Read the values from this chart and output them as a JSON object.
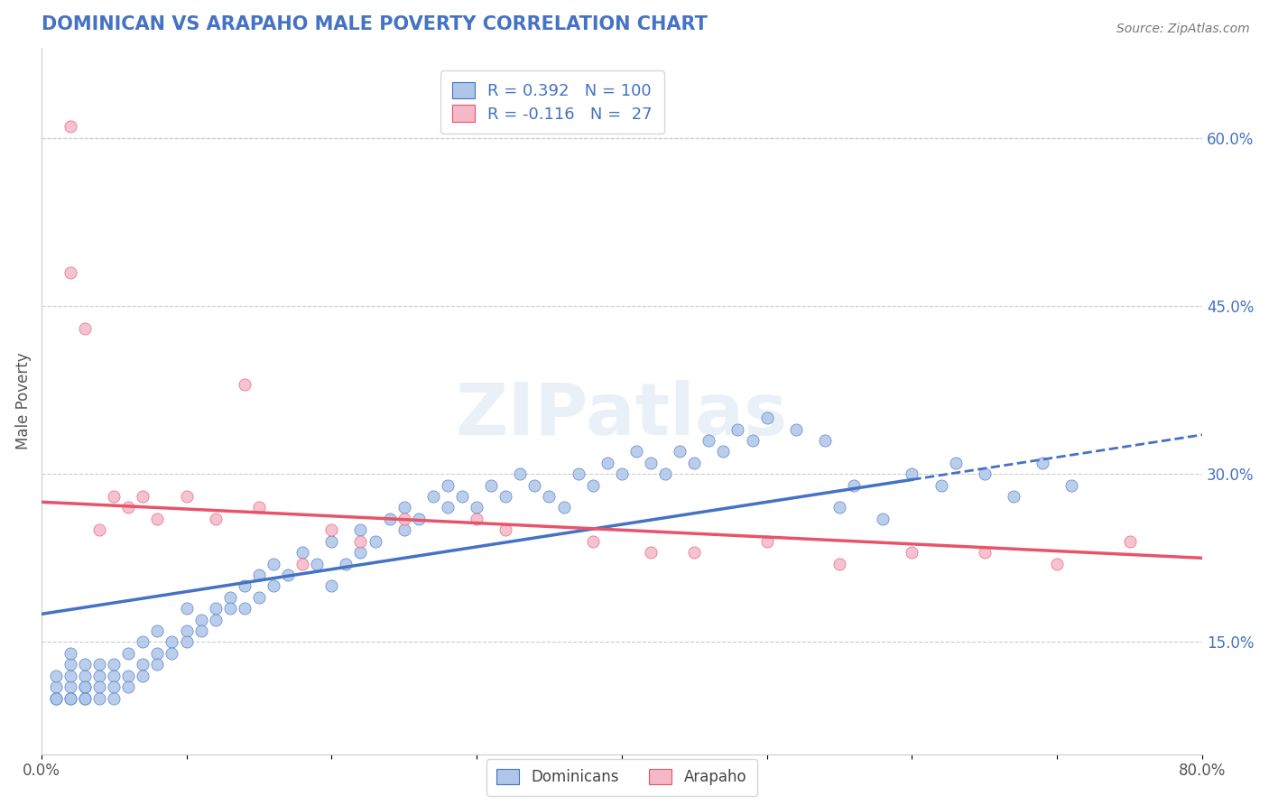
{
  "title": "DOMINICAN VS ARAPAHO MALE POVERTY CORRELATION CHART",
  "source": "Source: ZipAtlas.com",
  "ylabel": "Male Poverty",
  "xlim": [
    0.0,
    0.8
  ],
  "ylim": [
    0.05,
    0.68
  ],
  "xticks": [
    0.0,
    0.1,
    0.2,
    0.3,
    0.4,
    0.5,
    0.6,
    0.7,
    0.8
  ],
  "xticklabels": [
    "0.0%",
    "",
    "",
    "",
    "",
    "",
    "",
    "",
    "80.0%"
  ],
  "yticks_right": [
    0.15,
    0.3,
    0.45,
    0.6
  ],
  "ytick_right_labels": [
    "15.0%",
    "30.0%",
    "45.0%",
    "60.0%"
  ],
  "dominican_color": "#aec6e8",
  "arapaho_color": "#f4b8c8",
  "dominican_line_color": "#4472c4",
  "arapaho_line_color": "#e8536a",
  "r_dominican": 0.392,
  "n_dominican": 100,
  "r_arapaho": -0.116,
  "n_arapaho": 27,
  "watermark": "ZIPatlas",
  "title_color": "#4472c4",
  "title_fontsize": 15,
  "grid_color": "#cccccc",
  "background_color": "#ffffff",
  "dominican_x": [
    0.01,
    0.01,
    0.01,
    0.01,
    0.02,
    0.02,
    0.02,
    0.02,
    0.02,
    0.02,
    0.03,
    0.03,
    0.03,
    0.03,
    0.03,
    0.03,
    0.04,
    0.04,
    0.04,
    0.04,
    0.05,
    0.05,
    0.05,
    0.05,
    0.06,
    0.06,
    0.06,
    0.07,
    0.07,
    0.07,
    0.08,
    0.08,
    0.08,
    0.09,
    0.09,
    0.1,
    0.1,
    0.1,
    0.11,
    0.11,
    0.12,
    0.12,
    0.13,
    0.13,
    0.14,
    0.14,
    0.15,
    0.15,
    0.16,
    0.16,
    0.17,
    0.18,
    0.19,
    0.2,
    0.2,
    0.21,
    0.22,
    0.22,
    0.23,
    0.24,
    0.25,
    0.25,
    0.26,
    0.27,
    0.28,
    0.28,
    0.29,
    0.3,
    0.31,
    0.32,
    0.33,
    0.34,
    0.35,
    0.36,
    0.37,
    0.38,
    0.39,
    0.4,
    0.41,
    0.42,
    0.43,
    0.44,
    0.45,
    0.46,
    0.47,
    0.48,
    0.49,
    0.5,
    0.52,
    0.54,
    0.55,
    0.56,
    0.58,
    0.6,
    0.62,
    0.63,
    0.65,
    0.67,
    0.69,
    0.71
  ],
  "dominican_y": [
    0.1,
    0.11,
    0.12,
    0.1,
    0.1,
    0.11,
    0.12,
    0.13,
    0.14,
    0.1,
    0.1,
    0.11,
    0.12,
    0.13,
    0.11,
    0.1,
    0.12,
    0.11,
    0.13,
    0.1,
    0.12,
    0.11,
    0.1,
    0.13,
    0.14,
    0.12,
    0.11,
    0.13,
    0.15,
    0.12,
    0.14,
    0.16,
    0.13,
    0.15,
    0.14,
    0.16,
    0.18,
    0.15,
    0.17,
    0.16,
    0.18,
    0.17,
    0.19,
    0.18,
    0.2,
    0.18,
    0.19,
    0.21,
    0.2,
    0.22,
    0.21,
    0.23,
    0.22,
    0.2,
    0.24,
    0.22,
    0.23,
    0.25,
    0.24,
    0.26,
    0.25,
    0.27,
    0.26,
    0.28,
    0.27,
    0.29,
    0.28,
    0.27,
    0.29,
    0.28,
    0.3,
    0.29,
    0.28,
    0.27,
    0.3,
    0.29,
    0.31,
    0.3,
    0.32,
    0.31,
    0.3,
    0.32,
    0.31,
    0.33,
    0.32,
    0.34,
    0.33,
    0.35,
    0.34,
    0.33,
    0.27,
    0.29,
    0.26,
    0.3,
    0.29,
    0.31,
    0.3,
    0.28,
    0.31,
    0.29
  ],
  "arapaho_x": [
    0.02,
    0.02,
    0.03,
    0.04,
    0.05,
    0.06,
    0.07,
    0.08,
    0.1,
    0.12,
    0.14,
    0.15,
    0.18,
    0.2,
    0.22,
    0.25,
    0.3,
    0.32,
    0.38,
    0.42,
    0.45,
    0.5,
    0.55,
    0.6,
    0.65,
    0.7,
    0.75
  ],
  "arapaho_y": [
    0.61,
    0.48,
    0.43,
    0.25,
    0.28,
    0.27,
    0.28,
    0.26,
    0.28,
    0.26,
    0.38,
    0.27,
    0.22,
    0.25,
    0.24,
    0.26,
    0.26,
    0.25,
    0.24,
    0.23,
    0.23,
    0.24,
    0.22,
    0.23,
    0.23,
    0.22,
    0.24
  ],
  "dom_line_x0": 0.0,
  "dom_line_x_solid_end": 0.6,
  "dom_line_x_dash_end": 0.8,
  "dom_line_y0": 0.175,
  "dom_line_y_solid_end": 0.295,
  "dom_line_y_dash_end": 0.335,
  "ara_line_x0": 0.0,
  "ara_line_x_end": 0.8,
  "ara_line_y0": 0.275,
  "ara_line_y_end": 0.225
}
